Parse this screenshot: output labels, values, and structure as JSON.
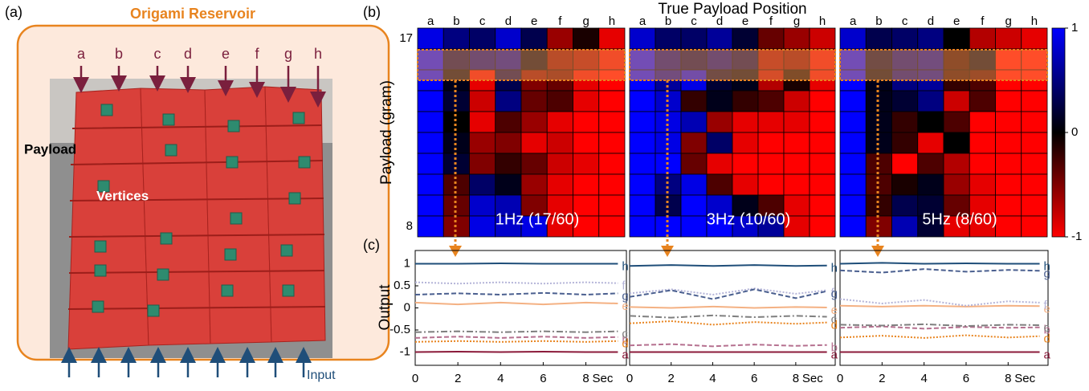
{
  "panel_a": {
    "label": "(a)",
    "title": "Origami Reservoir",
    "positions": [
      "a",
      "b",
      "c",
      "d",
      "e",
      "f",
      "g",
      "h"
    ],
    "payload_label": "Payload",
    "vertices_label": "Vertices",
    "input_label": "Input"
  },
  "chart_data": [
    {
      "type": "heatmap",
      "panel_label": "(b)",
      "title": "1Hz (17/60)",
      "y_title": "Payload (gram)",
      "categories": [
        "a",
        "b",
        "c",
        "d",
        "e",
        "f",
        "g",
        "h"
      ],
      "y_categories": [
        "17",
        null,
        null,
        null,
        null,
        null,
        null,
        null,
        null,
        "8"
      ],
      "clim": [
        -1,
        1
      ],
      "values": [
        [
          0.9,
          0.5,
          0.4,
          0.8,
          0.3,
          -0.6,
          -0.1,
          -0.9
        ],
        [
          1,
          0.3,
          0.5,
          0.6,
          0.1,
          -0.5,
          -0.6,
          -0.9
        ],
        [
          1,
          0.1,
          -0.9,
          0.3,
          -0.5,
          -0.4,
          -0.9,
          -1
        ],
        [
          1,
          0.2,
          -0.8,
          0.5,
          -0.4,
          -0.3,
          -0.9,
          -1
        ],
        [
          1,
          0.0,
          -0.9,
          -0.3,
          -0.6,
          -0.9,
          -1,
          -1
        ],
        [
          1,
          0.1,
          -0.6,
          -0.5,
          -0.9,
          -0.8,
          -1,
          -1
        ],
        [
          1,
          0.2,
          -0.5,
          -0.2,
          -0.4,
          -0.8,
          -0.9,
          -1
        ],
        [
          1,
          -0.3,
          0.4,
          0.1,
          -0.6,
          -0.9,
          -1,
          -1
        ],
        [
          1,
          -0.4,
          0.8,
          0.7,
          -0.5,
          -0.9,
          -1,
          -1
        ],
        [
          1,
          -0.5,
          0.9,
          0.8,
          0.9,
          -0.9,
          -1,
          -1
        ]
      ]
    },
    {
      "type": "heatmap",
      "title": "3Hz (10/60)",
      "x_title": "True Payload Position",
      "categories": [
        "a",
        "b",
        "c",
        "d",
        "e",
        "f",
        "g",
        "h"
      ],
      "clim": [
        -1,
        1
      ],
      "values": [
        [
          0.8,
          0.4,
          0.4,
          0.6,
          0.2,
          -0.4,
          -0.6,
          -0.8
        ],
        [
          1,
          0.5,
          0.3,
          0.5,
          0.3,
          -0.6,
          -0.5,
          -0.9
        ],
        [
          1,
          0.6,
          0.9,
          0.2,
          0.1,
          -0.7,
          -0.1,
          -0.9
        ],
        [
          1,
          0.8,
          -0.2,
          0.1,
          -0.2,
          -0.3,
          -0.8,
          -1
        ],
        [
          1,
          0.9,
          0.7,
          -0.6,
          -0.9,
          -0.9,
          -0.9,
          -1
        ],
        [
          1,
          0.9,
          -0.5,
          0.4,
          -0.9,
          -1,
          -1,
          -1
        ],
        [
          1,
          1,
          -0.4,
          -0.9,
          -1,
          -1,
          -1,
          -1
        ],
        [
          1,
          0.5,
          0.9,
          -0.3,
          -0.9,
          -1,
          -1,
          -1
        ],
        [
          1,
          0.3,
          1,
          0.8,
          0.1,
          -0.3,
          -0.9,
          -1
        ],
        [
          1,
          1,
          1,
          1,
          0.8,
          0.6,
          -0.9,
          -1
        ]
      ]
    },
    {
      "type": "heatmap",
      "title": "5Hz (8/60)",
      "categories": [
        "a",
        "b",
        "c",
        "d",
        "e",
        "f",
        "g",
        "h"
      ],
      "clim": [
        -1,
        1
      ],
      "colorbar_ticks": [
        1,
        0,
        -1
      ],
      "values": [
        [
          0.8,
          0.3,
          0.4,
          0.5,
          0.0,
          -0.7,
          -0.8,
          -0.9
        ],
        [
          1,
          0.2,
          0.5,
          0.6,
          -0.2,
          0.1,
          -1,
          -1
        ],
        [
          1,
          0.1,
          0.5,
          0.6,
          -0.2,
          -0.3,
          -1,
          -1
        ],
        [
          1,
          0.1,
          0.2,
          0.5,
          -0.8,
          -0.3,
          -1,
          -1
        ],
        [
          1,
          0.1,
          -0.2,
          0.0,
          -0.3,
          -1,
          -1,
          -1
        ],
        [
          1,
          0.1,
          -0.2,
          -0.9,
          0.0,
          -1,
          -1,
          -1
        ],
        [
          1,
          -0.3,
          -1,
          -0.3,
          -0.7,
          -1,
          -1,
          -1
        ],
        [
          1,
          -0.3,
          -0.1,
          0.1,
          -0.6,
          -0.9,
          -1,
          -1
        ],
        [
          1,
          -0.2,
          0.3,
          0.2,
          -0.4,
          -0.9,
          -1,
          -1
        ],
        [
          1,
          -0.5,
          0.7,
          0.2,
          -0.9,
          -0.9,
          -1,
          -1
        ]
      ]
    },
    {
      "type": "line",
      "panel_label": "(c)",
      "y_title": "Output",
      "x": [
        0,
        2,
        4,
        6,
        8,
        9.5
      ],
      "xlim": [
        0,
        9.9
      ],
      "ylim": [
        -1.3,
        1.3
      ],
      "xticks": [
        0,
        2,
        4,
        6,
        8
      ],
      "x_unit_label": "Sec",
      "yticks": [
        1,
        0.5,
        0,
        -0.5,
        -1
      ],
      "series": [
        {
          "name": "a",
          "color": "#8b1a3a",
          "style": "solid",
          "values": [
            -1.0,
            -0.99,
            -1.0,
            -0.99,
            -1.0,
            -1.0
          ]
        },
        {
          "name": "b",
          "color": "#b5708f",
          "style": "dashed",
          "values": [
            -0.68,
            -0.65,
            -0.68,
            -0.65,
            -0.68,
            -0.66
          ]
        },
        {
          "name": "c",
          "color": "#7f7f7f",
          "style": "dashdot",
          "values": [
            -0.55,
            -0.53,
            -0.55,
            -0.53,
            -0.55,
            -0.53
          ]
        },
        {
          "name": "d",
          "color": "#e8841f",
          "style": "dotted",
          "values": [
            -0.77,
            -0.75,
            -0.77,
            -0.75,
            -0.77,
            -0.75
          ]
        },
        {
          "name": "e",
          "color": "#f4b183",
          "style": "solid",
          "values": [
            0.12,
            0.08,
            0.12,
            0.08,
            0.12,
            0.1
          ]
        },
        {
          "name": "f",
          "color": "#b4b4d8",
          "style": "dotted",
          "values": [
            0.58,
            0.55,
            0.58,
            0.55,
            0.58,
            0.56
          ]
        },
        {
          "name": "g",
          "color": "#4a5f8f",
          "style": "dashed",
          "values": [
            0.3,
            0.33,
            0.3,
            0.34,
            0.3,
            0.33
          ]
        },
        {
          "name": "h",
          "color": "#1f4e79",
          "style": "solid",
          "values": [
            1.0,
            1.0,
            1.01,
            1.0,
            1.0,
            1.0
          ]
        }
      ]
    },
    {
      "type": "line",
      "x": [
        0,
        2,
        4,
        6,
        8,
        9.5
      ],
      "xlim": [
        0,
        9.9
      ],
      "ylim": [
        -1.3,
        1.3
      ],
      "xticks": [
        0,
        2,
        4,
        6,
        8
      ],
      "x_unit_label": "Sec",
      "series": [
        {
          "name": "a",
          "color": "#8b1a3a",
          "style": "solid",
          "values": [
            -1,
            -1,
            -1,
            -1,
            -1,
            -1
          ]
        },
        {
          "name": "b",
          "color": "#b5708f",
          "style": "dashed",
          "values": [
            -0.85,
            -0.82,
            -0.87,
            -0.83,
            -0.86,
            -0.84
          ]
        },
        {
          "name": "c",
          "color": "#7f7f7f",
          "style": "dashdot",
          "values": [
            -0.18,
            -0.22,
            -0.17,
            -0.21,
            -0.18,
            -0.2
          ]
        },
        {
          "name": "d",
          "color": "#e8841f",
          "style": "dotted",
          "values": [
            -0.35,
            -0.3,
            -0.38,
            -0.32,
            -0.36,
            -0.33
          ]
        },
        {
          "name": "e",
          "color": "#f4b183",
          "style": "solid",
          "values": [
            0.02,
            0.0,
            0.03,
            0.0,
            0.02,
            0.01
          ]
        },
        {
          "name": "f",
          "color": "#b4b4d8",
          "style": "dotted",
          "values": [
            0.33,
            0.42,
            0.3,
            0.44,
            0.32,
            0.4
          ]
        },
        {
          "name": "g",
          "color": "#4a5f8f",
          "style": "dashed",
          "values": [
            0.25,
            0.4,
            0.2,
            0.42,
            0.22,
            0.38
          ]
        },
        {
          "name": "h",
          "color": "#1f4e79",
          "style": "solid",
          "values": [
            0.95,
            0.97,
            0.95,
            0.97,
            0.95,
            0.96
          ]
        }
      ]
    },
    {
      "type": "line",
      "x": [
        0,
        2,
        4,
        6,
        8,
        9.5
      ],
      "xlim": [
        0,
        9.9
      ],
      "ylim": [
        -1.3,
        1.3
      ],
      "xticks": [
        0,
        2,
        4,
        6,
        8
      ],
      "x_unit_label": "Sec",
      "series": [
        {
          "name": "a",
          "color": "#8b1a3a",
          "style": "solid",
          "values": [
            -1,
            -1,
            -1,
            -1,
            -1,
            -1
          ]
        },
        {
          "name": "b",
          "color": "#b5708f",
          "style": "dashed",
          "values": [
            -0.45,
            -0.42,
            -0.47,
            -0.43,
            -0.45,
            -0.44
          ]
        },
        {
          "name": "c",
          "color": "#7f7f7f",
          "style": "dashdot",
          "values": [
            -0.38,
            -0.4,
            -0.37,
            -0.41,
            -0.38,
            -0.39
          ]
        },
        {
          "name": "d",
          "color": "#e8841f",
          "style": "dotted",
          "values": [
            -0.67,
            -0.63,
            -0.68,
            -0.62,
            -0.67,
            -0.64
          ]
        },
        {
          "name": "e",
          "color": "#f4b183",
          "style": "solid",
          "values": [
            0.05,
            0.03,
            0.05,
            0.03,
            0.05,
            0.04
          ]
        },
        {
          "name": "f",
          "color": "#b4b4d8",
          "style": "dotted",
          "values": [
            0.2,
            0.1,
            0.18,
            0.05,
            0.15,
            0.12
          ]
        },
        {
          "name": "g",
          "color": "#4a5f8f",
          "style": "dashed",
          "values": [
            0.85,
            0.8,
            0.88,
            0.82,
            0.86,
            0.84
          ]
        },
        {
          "name": "h",
          "color": "#1f4e79",
          "style": "solid",
          "values": [
            1.0,
            1.02,
            1.0,
            1.01,
            1.0,
            1.0
          ]
        }
      ]
    }
  ]
}
